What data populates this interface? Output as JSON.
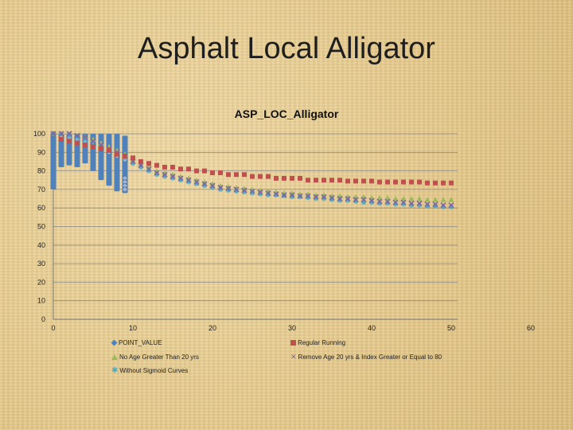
{
  "slide": {
    "title": "Asphalt Local Alligator"
  },
  "chart_data": {
    "type": "scatter",
    "title": "ASP_LOC_Alligator",
    "xlabel": "",
    "ylabel": "",
    "xlim": [
      0,
      60
    ],
    "ylim": [
      0,
      100
    ],
    "xticks": [
      "0",
      "10",
      "20",
      "30",
      "40",
      "50",
      "60"
    ],
    "yticks": [
      "0",
      "10",
      "20",
      "30",
      "40",
      "50",
      "60",
      "70",
      "80",
      "90",
      "100"
    ],
    "grid": "horizontal",
    "legend_position": "bottom",
    "series": [
      {
        "name": "POINT_VALUE",
        "color": "#4f81bd",
        "marker": "diamond",
        "ranges": [
          {
            "x": 0,
            "min": 70,
            "max": 100
          },
          {
            "x": 1,
            "min": 82,
            "max": 100
          },
          {
            "x": 2,
            "min": 83,
            "max": 100
          },
          {
            "x": 3,
            "min": 82,
            "max": 100
          },
          {
            "x": 4,
            "min": 84,
            "max": 100
          },
          {
            "x": 5,
            "min": 80,
            "max": 100
          },
          {
            "x": 6,
            "min": 75,
            "max": 100
          },
          {
            "x": 7,
            "min": 72,
            "max": 100
          },
          {
            "x": 8,
            "min": 69,
            "max": 100
          },
          {
            "x": 9,
            "min": 68,
            "max": 99
          }
        ],
        "points": [
          {
            "x": 0,
            "y": 100
          },
          {
            "x": 1,
            "y": 99
          },
          {
            "x": 2,
            "y": 98
          },
          {
            "x": 3,
            "y": 97
          },
          {
            "x": 4,
            "y": 96
          },
          {
            "x": 5,
            "y": 94
          },
          {
            "x": 6,
            "y": 92
          },
          {
            "x": 7,
            "y": 90
          },
          {
            "x": 8,
            "y": 88
          },
          {
            "x": 9,
            "y": 86
          },
          {
            "x": 9,
            "y": 76
          },
          {
            "x": 9,
            "y": 74
          },
          {
            "x": 9,
            "y": 72
          },
          {
            "x": 9,
            "y": 70
          }
        ]
      },
      {
        "name": "Regular Running",
        "color": "#c0504d",
        "marker": "square",
        "x": [
          1,
          2,
          3,
          4,
          5,
          6,
          7,
          8,
          9,
          10,
          11,
          12,
          13,
          14,
          15,
          16,
          17,
          18,
          19,
          20,
          21,
          22,
          23,
          24,
          25,
          26,
          27,
          28,
          29,
          30,
          31,
          32,
          33,
          34,
          35,
          36,
          37,
          38,
          39,
          40,
          41,
          42,
          43,
          44,
          45,
          46,
          47,
          48,
          49,
          50
        ],
        "y": [
          97,
          96,
          95,
          94,
          93,
          92,
          91,
          89,
          88,
          87,
          85,
          84,
          83,
          82,
          82,
          81,
          81,
          80,
          80,
          79,
          79,
          78,
          78,
          78,
          77,
          77,
          77,
          76,
          76,
          76,
          76,
          75,
          75,
          75,
          75,
          75,
          74.5,
          74.5,
          74.5,
          74.5,
          74,
          74,
          74,
          74,
          74,
          74,
          73.5,
          73.5,
          73.5,
          73.5
        ]
      },
      {
        "name": "No Age Greater Than 20 yrs",
        "color": "#9bbb59",
        "marker": "triangle",
        "x": [
          0,
          1,
          2,
          3,
          4,
          5,
          6,
          7,
          8,
          9,
          10,
          11,
          12,
          13,
          14,
          15,
          16,
          17,
          18,
          19,
          20,
          21,
          22,
          23,
          24,
          25,
          26,
          27,
          28,
          29,
          30,
          31,
          32,
          33,
          34,
          35,
          36,
          37,
          38,
          39,
          40,
          41,
          42,
          43,
          44,
          45,
          46,
          47,
          48,
          49,
          50
        ],
        "y": [
          100,
          100,
          100,
          99,
          98,
          97,
          95,
          93,
          91,
          89,
          86,
          84,
          82,
          80,
          79,
          78,
          77,
          76,
          75,
          74,
          73,
          72,
          71.5,
          71,
          70.5,
          70,
          69.5,
          69,
          68.5,
          68,
          68,
          67.5,
          67.5,
          67,
          67,
          66.5,
          66.5,
          66,
          66,
          66,
          65.5,
          65.5,
          65.5,
          65,
          65,
          65,
          65,
          64.5,
          64.5,
          64.5,
          64.5
        ]
      },
      {
        "name": "Remove Age 20 yrs & Index Greater or Equal to 80",
        "color": "#8064a2",
        "marker": "x",
        "x": [
          0,
          1,
          2,
          3,
          4,
          5,
          6,
          7,
          8,
          9,
          10,
          11,
          12,
          13,
          14,
          15,
          16,
          17,
          18,
          19,
          20,
          21,
          22,
          23,
          24,
          25,
          26,
          27,
          28,
          29,
          30,
          31,
          32,
          33,
          34,
          35,
          36,
          37,
          38,
          39,
          40,
          41,
          42,
          43,
          44,
          45,
          46,
          47,
          48,
          49,
          50
        ],
        "y": [
          100,
          100,
          100,
          99,
          98,
          96,
          94,
          92,
          90,
          88,
          85,
          83,
          81,
          79,
          78,
          77,
          76,
          75,
          74,
          73,
          72,
          71,
          70.5,
          70,
          69.5,
          69,
          68.5,
          68,
          67.5,
          67,
          67,
          66.5,
          66.5,
          66,
          66,
          65.5,
          65,
          65,
          64.5,
          64.5,
          64,
          63.5,
          63.5,
          63,
          63,
          62.5,
          62.5,
          62,
          62,
          61.5,
          61.5
        ]
      },
      {
        "name": "Without Sigmoid Curves",
        "color": "#4bacc6",
        "marker": "star",
        "x": [
          0,
          1,
          2,
          3,
          4,
          5,
          6,
          7,
          8,
          9,
          10,
          11,
          12,
          13,
          14,
          15,
          16,
          17,
          18,
          19,
          20,
          21,
          22,
          23,
          24,
          25,
          26,
          27,
          28,
          29,
          30,
          31,
          32,
          33,
          34,
          35,
          36,
          37,
          38,
          39,
          40,
          41,
          42,
          43,
          44,
          45,
          46,
          47,
          48,
          49,
          50
        ],
        "y": [
          100,
          100,
          99,
          98,
          97,
          95,
          93,
          91,
          89,
          87,
          84,
          82,
          80,
          78,
          77,
          76,
          75,
          74,
          73,
          72,
          71,
          70,
          69.5,
          69,
          68.5,
          68,
          67.5,
          67,
          67,
          66.5,
          66,
          66,
          65.5,
          65,
          65,
          64.5,
          64,
          64,
          63.5,
          63,
          63,
          62.5,
          62.5,
          62,
          62,
          61.5,
          61.5,
          61,
          61,
          60.5,
          60.5
        ]
      }
    ]
  }
}
